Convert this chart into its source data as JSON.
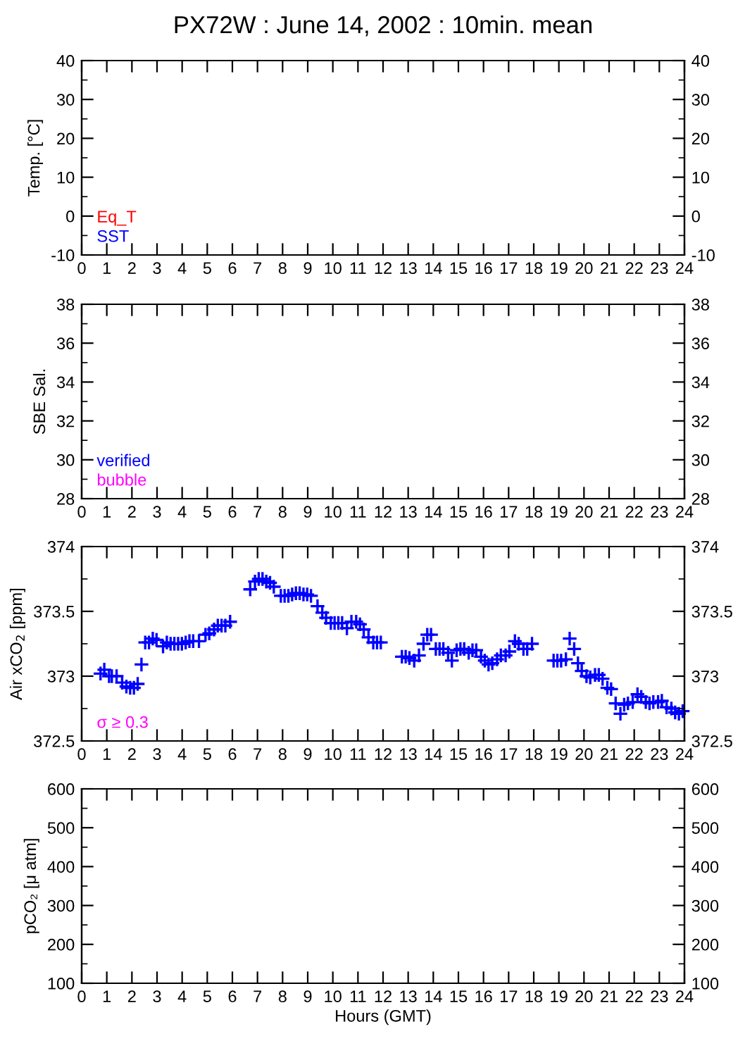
{
  "chart_data": [
    {
      "type": "scatter",
      "title": "PX72W : June 14, 2002 : 10min. mean",
      "ylabel": "Temp. [°C]",
      "xlim": [
        0,
        24
      ],
      "xticks": [
        0,
        1,
        2,
        3,
        4,
        5,
        6,
        7,
        8,
        9,
        10,
        11,
        12,
        13,
        14,
        15,
        16,
        17,
        18,
        19,
        20,
        21,
        22,
        23,
        24
      ],
      "ylim": [
        -10,
        40
      ],
      "yticks": [
        -10,
        0,
        10,
        20,
        30,
        40
      ],
      "y2lim": [
        -10,
        40
      ],
      "y2ticks": [
        -10,
        0,
        10,
        20,
        30,
        40
      ],
      "grid": false,
      "series": [
        {
          "name": "Eq_T",
          "color": "#ff0000",
          "x": [
            null
          ],
          "values": [
            null
          ]
        },
        {
          "name": "SST",
          "color": "#0000ff",
          "x": [
            null
          ],
          "values": [
            null
          ]
        }
      ]
    },
    {
      "type": "scatter",
      "ylabel": "SBE Sal.",
      "xlim": [
        0,
        24
      ],
      "xticks": [
        0,
        1,
        2,
        3,
        4,
        5,
        6,
        7,
        8,
        9,
        10,
        11,
        12,
        13,
        14,
        15,
        16,
        17,
        18,
        19,
        20,
        21,
        22,
        23,
        24
      ],
      "ylim": [
        28,
        38
      ],
      "yticks": [
        28,
        30,
        32,
        34,
        36,
        38
      ],
      "y2lim": [
        28,
        38
      ],
      "y2ticks": [
        28,
        30,
        32,
        34,
        36,
        38
      ],
      "grid": false,
      "series": [
        {
          "name": "verified",
          "color": "#0000ff",
          "x": [
            null
          ],
          "values": [
            null
          ]
        },
        {
          "name": "bubble",
          "color": "#ff00ff",
          "x": [
            null
          ],
          "values": [
            null
          ]
        }
      ]
    },
    {
      "type": "scatter",
      "ylabel": "Air xCO$_{2}$ [ppm]",
      "xlim": [
        0,
        24
      ],
      "xticks": [
        0,
        1,
        2,
        3,
        4,
        5,
        6,
        7,
        8,
        9,
        10,
        11,
        12,
        13,
        14,
        15,
        16,
        17,
        18,
        19,
        20,
        21,
        22,
        23,
        24
      ],
      "ylim": [
        372.5,
        374
      ],
      "yticks": [
        372.5,
        373,
        373.5,
        374
      ],
      "y2lim": [
        372.5,
        374
      ],
      "y2ticks": [
        372.5,
        373,
        373.5,
        374
      ],
      "grid": false,
      "marker": "cross",
      "series": [
        {
          "color": "#0000ff",
          "x": [
            0.75,
            0.9,
            1.09,
            1.2,
            1.39,
            1.61,
            1.78,
            1.93,
            2.08,
            2.23,
            2.38,
            2.53,
            2.68,
            2.83,
            2.98,
            3.24,
            3.39,
            3.54,
            3.69,
            3.84,
            3.99,
            4.14,
            4.29,
            4.44,
            4.67,
            4.93,
            5.08,
            5.27,
            5.42,
            5.57,
            5.72,
            5.91,
            6.71,
            6.9,
            7.05,
            7.2,
            7.35,
            7.5,
            7.65,
            7.93,
            8.08,
            8.23,
            8.38,
            8.53,
            8.68,
            8.83,
            8.98,
            9.13,
            9.39,
            9.58,
            9.73,
            9.92,
            10.07,
            10.22,
            10.37,
            10.56,
            10.74,
            10.93,
            11.08,
            11.23,
            11.42,
            11.61,
            11.76,
            11.91,
            12.75,
            12.9,
            13.05,
            13.24,
            13.43,
            13.61,
            13.76,
            13.91,
            14.1,
            14.25,
            14.4,
            14.59,
            14.74,
            14.93,
            15.08,
            15.23,
            15.41,
            15.56,
            15.71,
            15.9,
            16.05,
            16.2,
            16.35,
            16.54,
            16.69,
            16.88,
            17.03,
            17.25,
            17.4,
            17.59,
            17.74,
            17.93,
            18.79,
            18.94,
            19.09,
            19.28,
            19.43,
            19.61,
            19.76,
            19.91,
            20.1,
            20.25,
            20.44,
            20.59,
            20.74,
            20.93,
            21.08,
            21.26,
            21.45,
            21.6,
            21.75,
            21.94,
            22.13,
            22.28,
            22.46,
            22.61,
            22.76,
            22.95,
            23.1,
            23.29,
            23.48,
            23.63,
            23.78,
            23.93
          ],
          "values": [
            373.02,
            373.05,
            373.0,
            373.0,
            373.0,
            372.95,
            372.92,
            372.91,
            372.91,
            372.94,
            373.09,
            373.26,
            373.26,
            373.29,
            373.28,
            373.23,
            373.26,
            373.25,
            373.25,
            373.25,
            373.25,
            373.26,
            373.27,
            373.27,
            373.27,
            373.32,
            373.33,
            373.36,
            373.39,
            373.39,
            373.39,
            373.42,
            373.67,
            373.73,
            373.75,
            373.75,
            373.73,
            373.72,
            373.69,
            373.62,
            373.62,
            373.62,
            373.63,
            373.64,
            373.64,
            373.63,
            373.63,
            373.62,
            373.54,
            373.49,
            373.45,
            373.41,
            373.41,
            373.41,
            373.41,
            373.37,
            373.42,
            373.42,
            373.4,
            373.36,
            373.3,
            373.26,
            373.26,
            373.26,
            373.15,
            373.15,
            373.14,
            373.12,
            373.16,
            373.25,
            373.32,
            373.32,
            373.21,
            373.21,
            373.21,
            373.18,
            373.12,
            373.2,
            373.21,
            373.21,
            373.18,
            373.2,
            373.2,
            373.15,
            373.12,
            373.09,
            373.1,
            373.13,
            373.16,
            373.16,
            373.19,
            373.27,
            373.25,
            373.21,
            373.21,
            373.25,
            373.12,
            373.12,
            373.12,
            373.13,
            373.29,
            373.21,
            373.1,
            373.04,
            373.0,
            372.99,
            373.01,
            373.01,
            372.98,
            372.91,
            372.9,
            372.79,
            372.71,
            372.78,
            372.79,
            372.8,
            372.86,
            372.84,
            372.8,
            372.79,
            372.8,
            372.8,
            372.81,
            372.76,
            372.75,
            372.72,
            372.71,
            372.73
          ]
        },
        {
          "name": "σ ≥ 0.3",
          "color": "#ff00ff"
        }
      ]
    },
    {
      "type": "scatter",
      "ylabel": "pCO₂ [μ atm]",
      "xlabel": "Hours (GMT)",
      "xlim": [
        0,
        24
      ],
      "xticks": [
        0,
        1,
        2,
        3,
        4,
        5,
        6,
        7,
        8,
        9,
        10,
        11,
        12,
        13,
        14,
        15,
        16,
        17,
        18,
        19,
        20,
        21,
        22,
        23,
        24
      ],
      "ylim": [
        100,
        600
      ],
      "yticks": [
        100,
        200,
        300,
        400,
        500,
        600
      ],
      "y2lim": [
        100,
        600
      ],
      "y2ticks": [
        100,
        200,
        300,
        400,
        500,
        600
      ],
      "grid": false
    }
  ]
}
